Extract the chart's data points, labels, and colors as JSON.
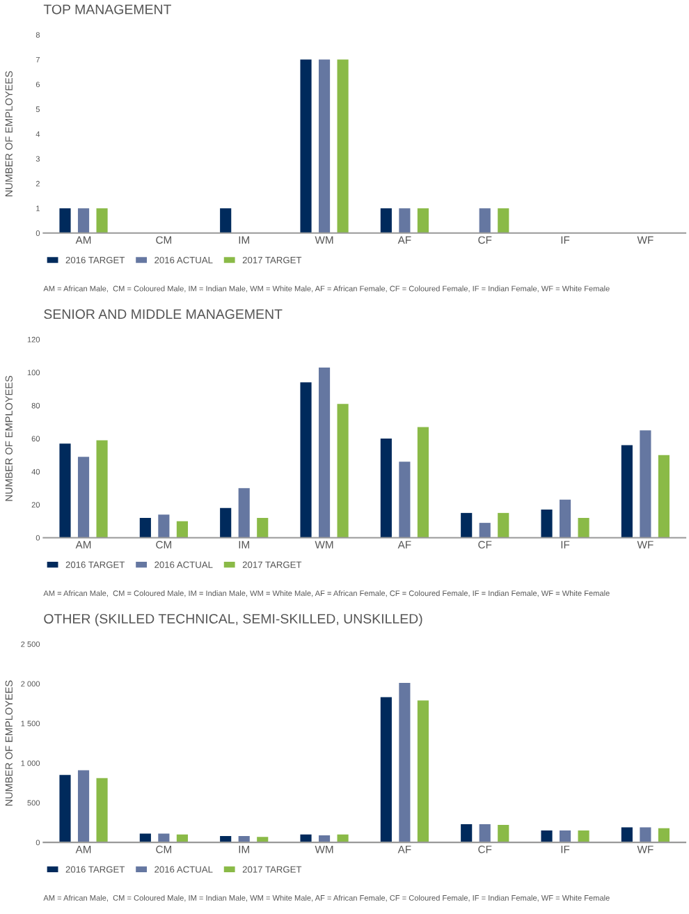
{
  "chart_data": [
    {
      "type": "bar",
      "title": "TOP MANAGEMENT",
      "ylabel": "NUMBER OF EMPLOYEES",
      "categories": [
        "AM",
        "CM",
        "IM",
        "WM",
        "AF",
        "CF",
        "IF",
        "WF"
      ],
      "series": [
        {
          "name": "2016 TARGET",
          "color": "#002a5c",
          "values": [
            1,
            0,
            1,
            7,
            1,
            0,
            0,
            0
          ]
        },
        {
          "name": "2016 ACTUAL",
          "color": "#6577a1",
          "values": [
            1,
            0,
            0,
            7,
            1,
            1,
            0,
            0
          ]
        },
        {
          "name": "2017 TARGET",
          "color": "#8aba47",
          "values": [
            1,
            0,
            0,
            7,
            1,
            1,
            0,
            0
          ]
        }
      ],
      "ylim": [
        0,
        8
      ],
      "yticks": [
        0,
        1,
        2,
        3,
        4,
        5,
        6,
        7,
        8
      ],
      "grid": false,
      "legend": "bottom left",
      "annotations": [
        "AM = African Male,  CM = Coloured Male, IM = Indian Male, WM = White Male, AF = African Female, CF = Coloured Female, IF = Indian Female, WF = White Female"
      ]
    },
    {
      "type": "bar",
      "title": "SENIOR AND MIDDLE MANAGEMENT",
      "ylabel": "NUMBER OF EMPLOYEES",
      "categories": [
        "AM",
        "CM",
        "IM",
        "WM",
        "AF",
        "CF",
        "IF",
        "WF"
      ],
      "series": [
        {
          "name": "2016 TARGET",
          "color": "#002a5c",
          "values": [
            57,
            12,
            18,
            94,
            60,
            15,
            17,
            56
          ]
        },
        {
          "name": "2016 ACTUAL",
          "color": "#6577a1",
          "values": [
            49,
            14,
            30,
            103,
            46,
            9,
            23,
            65
          ]
        },
        {
          "name": "2017 TARGET",
          "color": "#8aba47",
          "values": [
            59,
            10,
            12,
            81,
            67,
            15,
            12,
            50
          ]
        }
      ],
      "ylim": [
        0,
        120
      ],
      "yticks": [
        0,
        20,
        40,
        60,
        80,
        100,
        120
      ],
      "grid": false,
      "legend": "bottom left",
      "annotations": [
        "AM = African Male,  CM = Coloured Male, IM = Indian Male, WM = White Male, AF = African Female, CF = Coloured Female, IF = Indian Female, WF = White Female"
      ]
    },
    {
      "type": "bar",
      "title": "OTHER (SKILLED TECHNICAL, SEMI-SKILLED, UNSKILLED)",
      "ylabel": "NUMBER OF EMPLOYEES",
      "categories": [
        "AM",
        "CM",
        "IM",
        "WM",
        "AF",
        "CF",
        "IF",
        "WF"
      ],
      "series": [
        {
          "name": "2016 TARGET",
          "color": "#002a5c",
          "values": [
            850,
            110,
            80,
            100,
            1830,
            230,
            150,
            190
          ]
        },
        {
          "name": "2016 ACTUAL",
          "color": "#6577a1",
          "values": [
            910,
            110,
            80,
            90,
            2010,
            230,
            150,
            190
          ]
        },
        {
          "name": "2017 TARGET",
          "color": "#8aba47",
          "values": [
            810,
            100,
            70,
            100,
            1790,
            220,
            150,
            180
          ]
        }
      ],
      "ylim": [
        0,
        2500
      ],
      "yticks": [
        0,
        500,
        {
          "value": 1000,
          "label": "1 000"
        },
        {
          "value": 1500,
          "label": "1 500"
        },
        {
          "value": 2000,
          "label": "2 000"
        },
        {
          "value": 2500,
          "label": "2 500"
        }
      ],
      "grid": false,
      "legend": "bottom left",
      "annotations": [
        "AM = African Male,  CM = Coloured Male, IM = Indian Male, WM = White Male, AF = African Female, CF = Coloured Female, IF = Indian Female, WF = White Female"
      ]
    }
  ]
}
